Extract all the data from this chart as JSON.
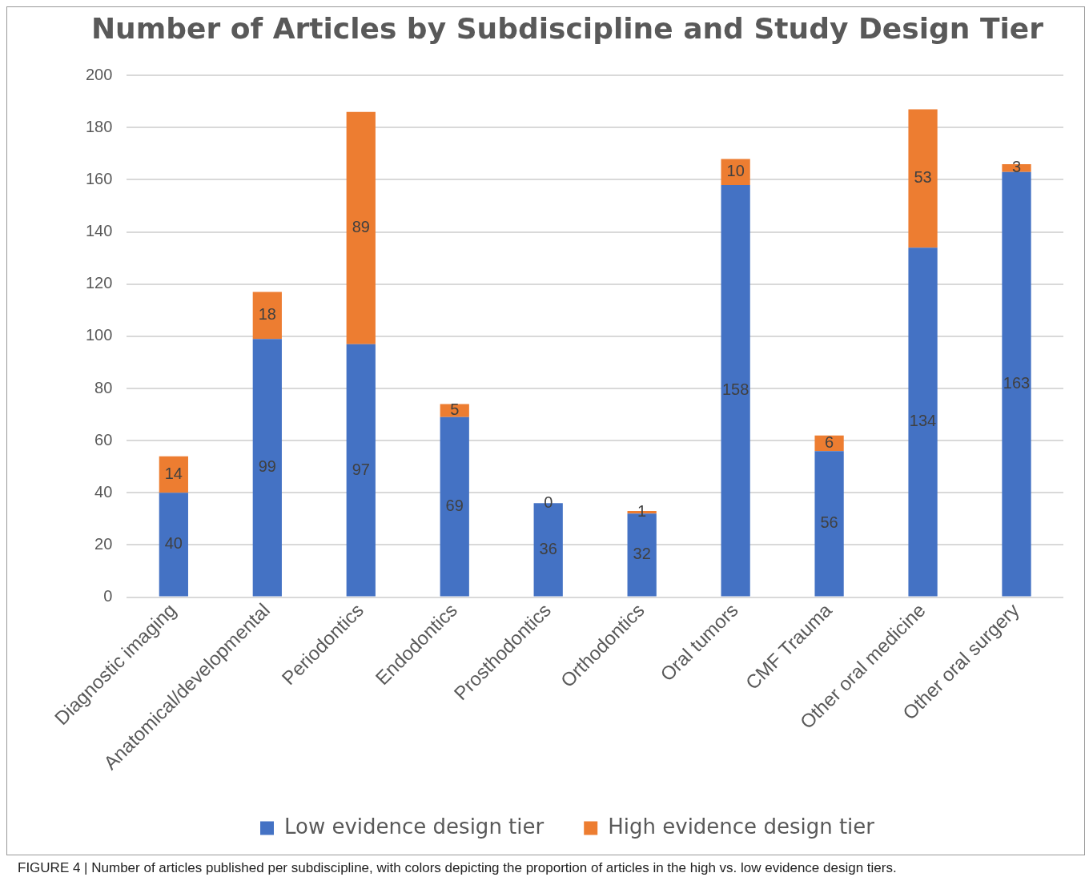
{
  "chart_data": {
    "type": "bar",
    "title": "Number of Articles by Subdiscipline and Study Design Tier",
    "categories": [
      "Diagnostic imaging",
      "Anatomical/developmental",
      "Periodontics",
      "Endodontics",
      "Prosthodontics",
      "Orthodontics",
      "Oral tumors",
      "CMF Trauma",
      "Other oral medicine",
      "Other oral surgery"
    ],
    "series": [
      {
        "name": "Low evidence design tier",
        "color": "#4472c4",
        "values": [
          40,
          99,
          97,
          69,
          36,
          32,
          158,
          56,
          134,
          163
        ]
      },
      {
        "name": "High evidence design tier",
        "color": "#ed7d31",
        "values": [
          14,
          18,
          89,
          5,
          0,
          1,
          10,
          6,
          53,
          3
        ]
      }
    ],
    "stacked": true,
    "ylim": [
      0,
      200
    ],
    "yticks": [
      0,
      20,
      40,
      60,
      80,
      100,
      120,
      140,
      160,
      180,
      200
    ],
    "grid": "y",
    "legend": "bottom",
    "data_labels": true,
    "annotations": [
      "FIGURE 4 | Number of articles published per subdiscipline, with colors depicting the proportion of articles in the high vs. low evidence design tiers."
    ]
  }
}
